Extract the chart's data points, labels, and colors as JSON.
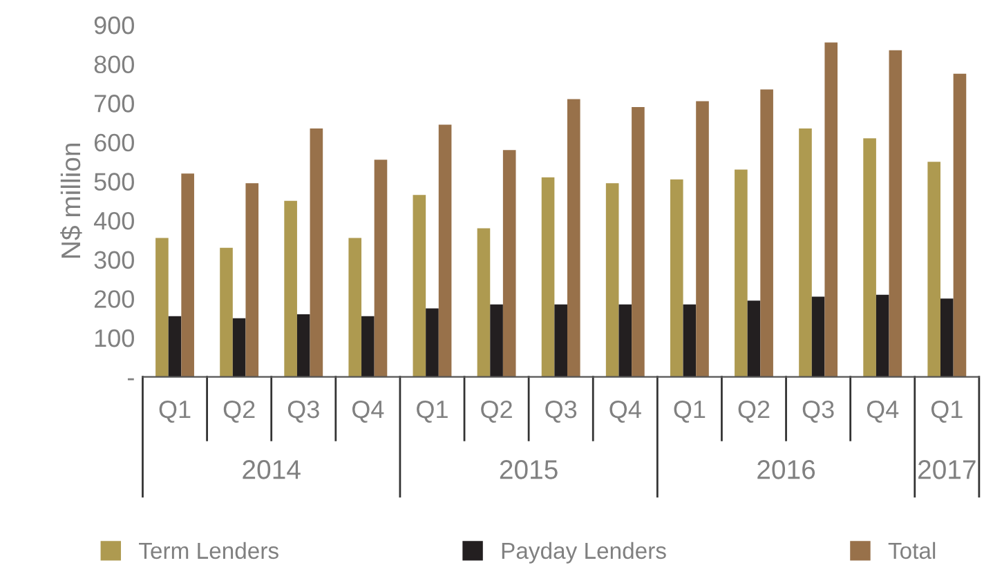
{
  "chart_data": {
    "type": "bar",
    "ylabel": "N$ million",
    "categories": [
      "Q1",
      "Q2",
      "Q3",
      "Q4",
      "Q1",
      "Q2",
      "Q3",
      "Q4",
      "Q1",
      "Q2",
      "Q3",
      "Q4",
      "Q1"
    ],
    "series": [
      {
        "name": "Term Lenders",
        "color": "#ae9a50",
        "values": [
          355,
          330,
          450,
          355,
          465,
          380,
          510,
          495,
          505,
          530,
          635,
          610,
          550
        ]
      },
      {
        "name": "Payday Lenders",
        "color": "#231f20",
        "values": [
          155,
          150,
          160,
          155,
          175,
          185,
          185,
          185,
          185,
          195,
          205,
          210,
          200
        ]
      },
      {
        "name": "Total",
        "color": "#98714a",
        "values": [
          520,
          495,
          635,
          555,
          645,
          580,
          710,
          690,
          705,
          735,
          855,
          835,
          775
        ]
      }
    ],
    "annotations": [
      "2014",
      "2015",
      "2016",
      "2017"
    ],
    "ylim": [
      0,
      900
    ],
    "yticks": [
      {
        "value": 0,
        "label": "-"
      },
      100,
      200,
      300,
      400,
      500,
      600,
      700,
      800,
      900
    ],
    "grid": false,
    "legend": "bottom"
  }
}
